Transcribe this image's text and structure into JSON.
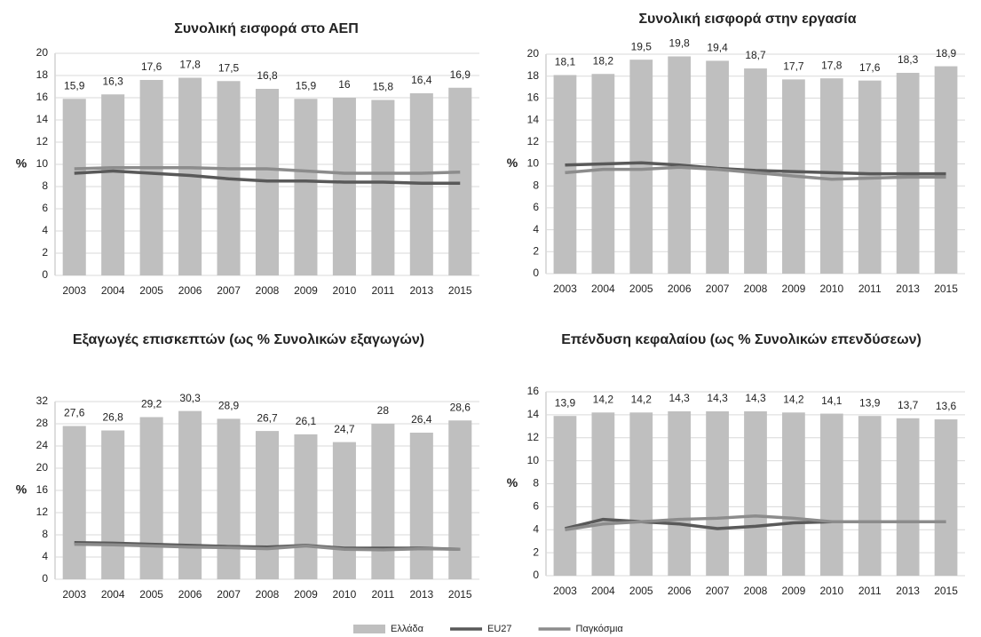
{
  "chart_data": [
    {
      "type": "bar",
      "title": "Συνολική εισφορά στο ΑΕΠ",
      "y_label": "%",
      "categories": [
        "2003",
        "2004",
        "2005",
        "2006",
        "2007",
        "2008",
        "2009",
        "2010",
        "2011",
        "2013",
        "2015"
      ],
      "ylim": [
        0,
        20
      ],
      "yticks": [
        0,
        2,
        4,
        6,
        8,
        10,
        12,
        14,
        16,
        18,
        20
      ],
      "series": [
        {
          "values": [
            15.9,
            16.3,
            17.6,
            17.8,
            17.5,
            16.8,
            15.9,
            16,
            15.8,
            16.4,
            16.9
          ],
          "value_labels": [
            "15,9",
            "16,3",
            "17,6",
            "17,8",
            "17,5",
            "16,8",
            "15,9",
            "16",
            "15,8",
            "16,4",
            "16,9"
          ]
        },
        {
          "values": [
            9.2,
            9.4,
            9.2,
            9.0,
            8.7,
            8.5,
            8.5,
            8.4,
            8.4,
            8.3,
            8.3
          ]
        },
        {
          "values": [
            9.6,
            9.7,
            9.7,
            9.7,
            9.6,
            9.6,
            9.4,
            9.2,
            9.2,
            9.2,
            9.3
          ]
        }
      ]
    },
    {
      "type": "bar",
      "title": "Συνολική εισφορά στην εργασία",
      "y_label": "%",
      "categories": [
        "2003",
        "2004",
        "2005",
        "2006",
        "2007",
        "2008",
        "2009",
        "2010",
        "2011",
        "2013",
        "2015"
      ],
      "ylim": [
        0,
        20
      ],
      "yticks": [
        0,
        2,
        4,
        6,
        8,
        10,
        12,
        14,
        16,
        18,
        20
      ],
      "series": [
        {
          "values": [
            18.1,
            18.2,
            19.5,
            19.8,
            19.4,
            18.7,
            17.7,
            17.8,
            17.6,
            18.3,
            18.9
          ],
          "value_labels": [
            "18,1",
            "18,2",
            "19,5",
            "19,8",
            "19,4",
            "18,7",
            "17,7",
            "17,8",
            "17,6",
            "18,3",
            "18,9"
          ]
        },
        {
          "values": [
            9.9,
            10.0,
            10.1,
            9.9,
            9.6,
            9.4,
            9.3,
            9.2,
            9.1,
            9.1,
            9.1
          ]
        },
        {
          "values": [
            9.2,
            9.5,
            9.5,
            9.7,
            9.5,
            9.2,
            8.9,
            8.6,
            8.7,
            8.8,
            8.8
          ]
        }
      ]
    },
    {
      "type": "bar",
      "title": "Εξαγωγές επισκεπτών (ως % Συνολικών εξαγωγών)",
      "y_label": "%",
      "categories": [
        "2003",
        "2004",
        "2005",
        "2006",
        "2007",
        "2008",
        "2009",
        "2010",
        "2011",
        "2013",
        "2015"
      ],
      "ylim": [
        0,
        32
      ],
      "yticks": [
        0,
        4,
        8,
        12,
        16,
        20,
        24,
        28,
        32
      ],
      "series": [
        {
          "values": [
            27.6,
            26.8,
            29.2,
            30.3,
            28.9,
            26.7,
            26.1,
            24.7,
            28,
            26.4,
            28.6
          ],
          "value_labels": [
            "27,6",
            "26,8",
            "29,2",
            "30,3",
            "28,9",
            "26,7",
            "26,1",
            "24,7",
            "28",
            "26,4",
            "28,6"
          ]
        },
        {
          "values": [
            6.6,
            6.5,
            6.3,
            6.1,
            5.9,
            5.8,
            6.1,
            5.6,
            5.6,
            5.6,
            5.4
          ]
        },
        {
          "values": [
            6.3,
            6.2,
            6.0,
            5.8,
            5.7,
            5.5,
            6.0,
            5.4,
            5.3,
            5.5,
            5.4
          ]
        }
      ]
    },
    {
      "type": "bar",
      "title": "Επένδυση κεφαλαίου (ως % Συνολικών επενδύσεων)",
      "y_label": "%",
      "categories": [
        "2003",
        "2004",
        "2005",
        "2006",
        "2007",
        "2008",
        "2009",
        "2010",
        "2011",
        "2013",
        "2015"
      ],
      "ylim": [
        0,
        16
      ],
      "yticks": [
        0,
        2,
        4,
        6,
        8,
        10,
        12,
        14,
        16
      ],
      "series": [
        {
          "values": [
            13.9,
            14.2,
            14.2,
            14.3,
            14.3,
            14.3,
            14.2,
            14.1,
            13.9,
            13.7,
            13.6
          ],
          "value_labels": [
            "13,9",
            "14,2",
            "14,2",
            "14,3",
            "14,3",
            "14,3",
            "14,2",
            "14,1",
            "13,9",
            "13,7",
            "13,6"
          ]
        },
        {
          "values": [
            4.1,
            4.9,
            4.7,
            4.5,
            4.1,
            4.3,
            4.6,
            4.7,
            4.7,
            4.7,
            4.7
          ]
        },
        {
          "values": [
            4.0,
            4.5,
            4.7,
            4.9,
            5.0,
            5.2,
            5.0,
            4.7,
            4.7,
            4.7,
            4.7
          ]
        }
      ]
    }
  ],
  "legend": {
    "position": "bottom",
    "series": [
      {
        "name": "Ελλάδα",
        "color": "#bfbfbf",
        "style": "bar"
      },
      {
        "name": "EU27",
        "color": "#595959",
        "style": "line"
      },
      {
        "name": "Παγκόσμια",
        "color": "#8c8c8c",
        "style": "line"
      }
    ]
  }
}
